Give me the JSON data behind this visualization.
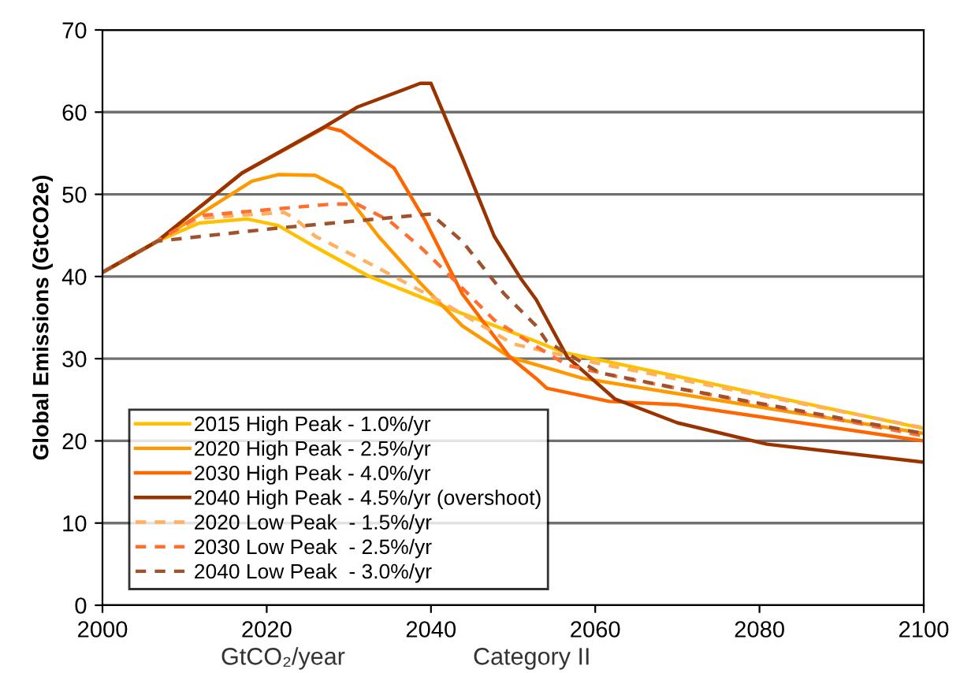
{
  "chart_data": {
    "type": "line",
    "ylabel": "Global Emissions (GtCO2e)",
    "xlim": [
      2000,
      2100
    ],
    "ylim": [
      0,
      70
    ],
    "xticks": [
      2000,
      2020,
      2040,
      2060,
      2080,
      2100
    ],
    "yticks": [
      0,
      10,
      20,
      30,
      40,
      50,
      60,
      70
    ],
    "grid": "y",
    "legend": "bottom left",
    "marker": "none",
    "annotations": [
      "GtCO₂/year",
      "Category II"
    ],
    "series": [
      {
        "name": "2015 High Peak - 1.0%/yr",
        "color": "#ffc000",
        "line_style": "solid",
        "x": [
          2000,
          2006.7,
          2011.8,
          2017.6,
          2021.4,
          2025.9,
          2032.3,
          2042.5,
          2052.8,
          2056,
          2100
        ],
        "values": [
          40.5,
          44.3,
          46.5,
          47.0,
          46.2,
          43.6,
          40.1,
          36.0,
          32.1,
          30.8,
          21.5
        ]
      },
      {
        "name": "2020 High Peak - 2.5%/yr",
        "color": "#ff9900",
        "line_style": "solid",
        "x": [
          2000,
          2006.7,
          2018.2,
          2021.4,
          2025.9,
          2029.1,
          2033.6,
          2038.7,
          2043.8,
          2049.6,
          2058.5,
          2100
        ],
        "values": [
          40.5,
          44.3,
          51.6,
          52.4,
          52.3,
          50.7,
          44.9,
          39.2,
          34.0,
          30.2,
          27.6,
          20.9
        ]
      },
      {
        "name": "2030 High Peak - 4.0%/yr",
        "color": "#ff6600",
        "line_style": "solid",
        "x": [
          2000,
          2006.7,
          2017,
          2027.2,
          2029.1,
          2035.5,
          2039.3,
          2043.8,
          2049.6,
          2052.8,
          2054.1,
          2061.7,
          2070,
          2100
        ],
        "values": [
          40.5,
          44.3,
          52.6,
          58.2,
          57.7,
          53.2,
          46.8,
          37.9,
          30.2,
          27.6,
          26.4,
          24.8,
          24.4,
          20.0
        ]
      },
      {
        "name": "2040 High Peak - 4.5%/yr (overshoot)",
        "color": "#993300",
        "line_style": "solid",
        "x": [
          2000,
          2006.7,
          2017,
          2027.2,
          2031,
          2038.7,
          2040,
          2043.8,
          2047.7,
          2050.9,
          2052.8,
          2056.6,
          2062.4,
          2070,
          2080.9,
          2100
        ],
        "values": [
          40.5,
          44.3,
          52.6,
          58.3,
          60.6,
          63.5,
          63.5,
          54.5,
          44.9,
          39.8,
          37.2,
          30.2,
          25.1,
          22.2,
          19.6,
          17.4
        ]
      },
      {
        "name": "2020 Low Peak  - 1.5%/yr",
        "color": "#ffb060",
        "line_style": "dashed",
        "x": [
          2000,
          2006.7,
          2011.8,
          2022.1,
          2023.4,
          2025.9,
          2032.3,
          2041.3,
          2050,
          2060,
          2100
        ],
        "values": [
          40.5,
          44.3,
          47.1,
          47.8,
          47.1,
          44.9,
          41.7,
          36.9,
          31.8,
          29.5,
          21.6
        ]
      },
      {
        "name": "2030 Low Peak  - 2.5%/yr",
        "color": "#ff7030",
        "line_style": "dashed",
        "x": [
          2000,
          2006.7,
          2011.8,
          2027.8,
          2031,
          2034.9,
          2038.7,
          2043.2,
          2047.7,
          2052.8,
          2056.6,
          2063.7,
          2100
        ],
        "values": [
          40.5,
          44.3,
          47.4,
          48.8,
          48.8,
          46.8,
          43.6,
          39.2,
          34.7,
          31.5,
          29.2,
          27.6,
          20.6
        ]
      },
      {
        "name": "2040 Low Peak  - 3.0%/yr",
        "color": "#a0522d",
        "line_style": "dashed",
        "x": [
          2000,
          2006.7,
          2021.4,
          2040,
          2043.8,
          2048.9,
          2052.8,
          2054.1,
          2060.5,
          2070,
          2100
        ],
        "values": [
          40.5,
          44.3,
          45.9,
          47.6,
          44.3,
          37.9,
          34.0,
          32.1,
          28.3,
          26.4,
          20.9
        ]
      }
    ]
  }
}
